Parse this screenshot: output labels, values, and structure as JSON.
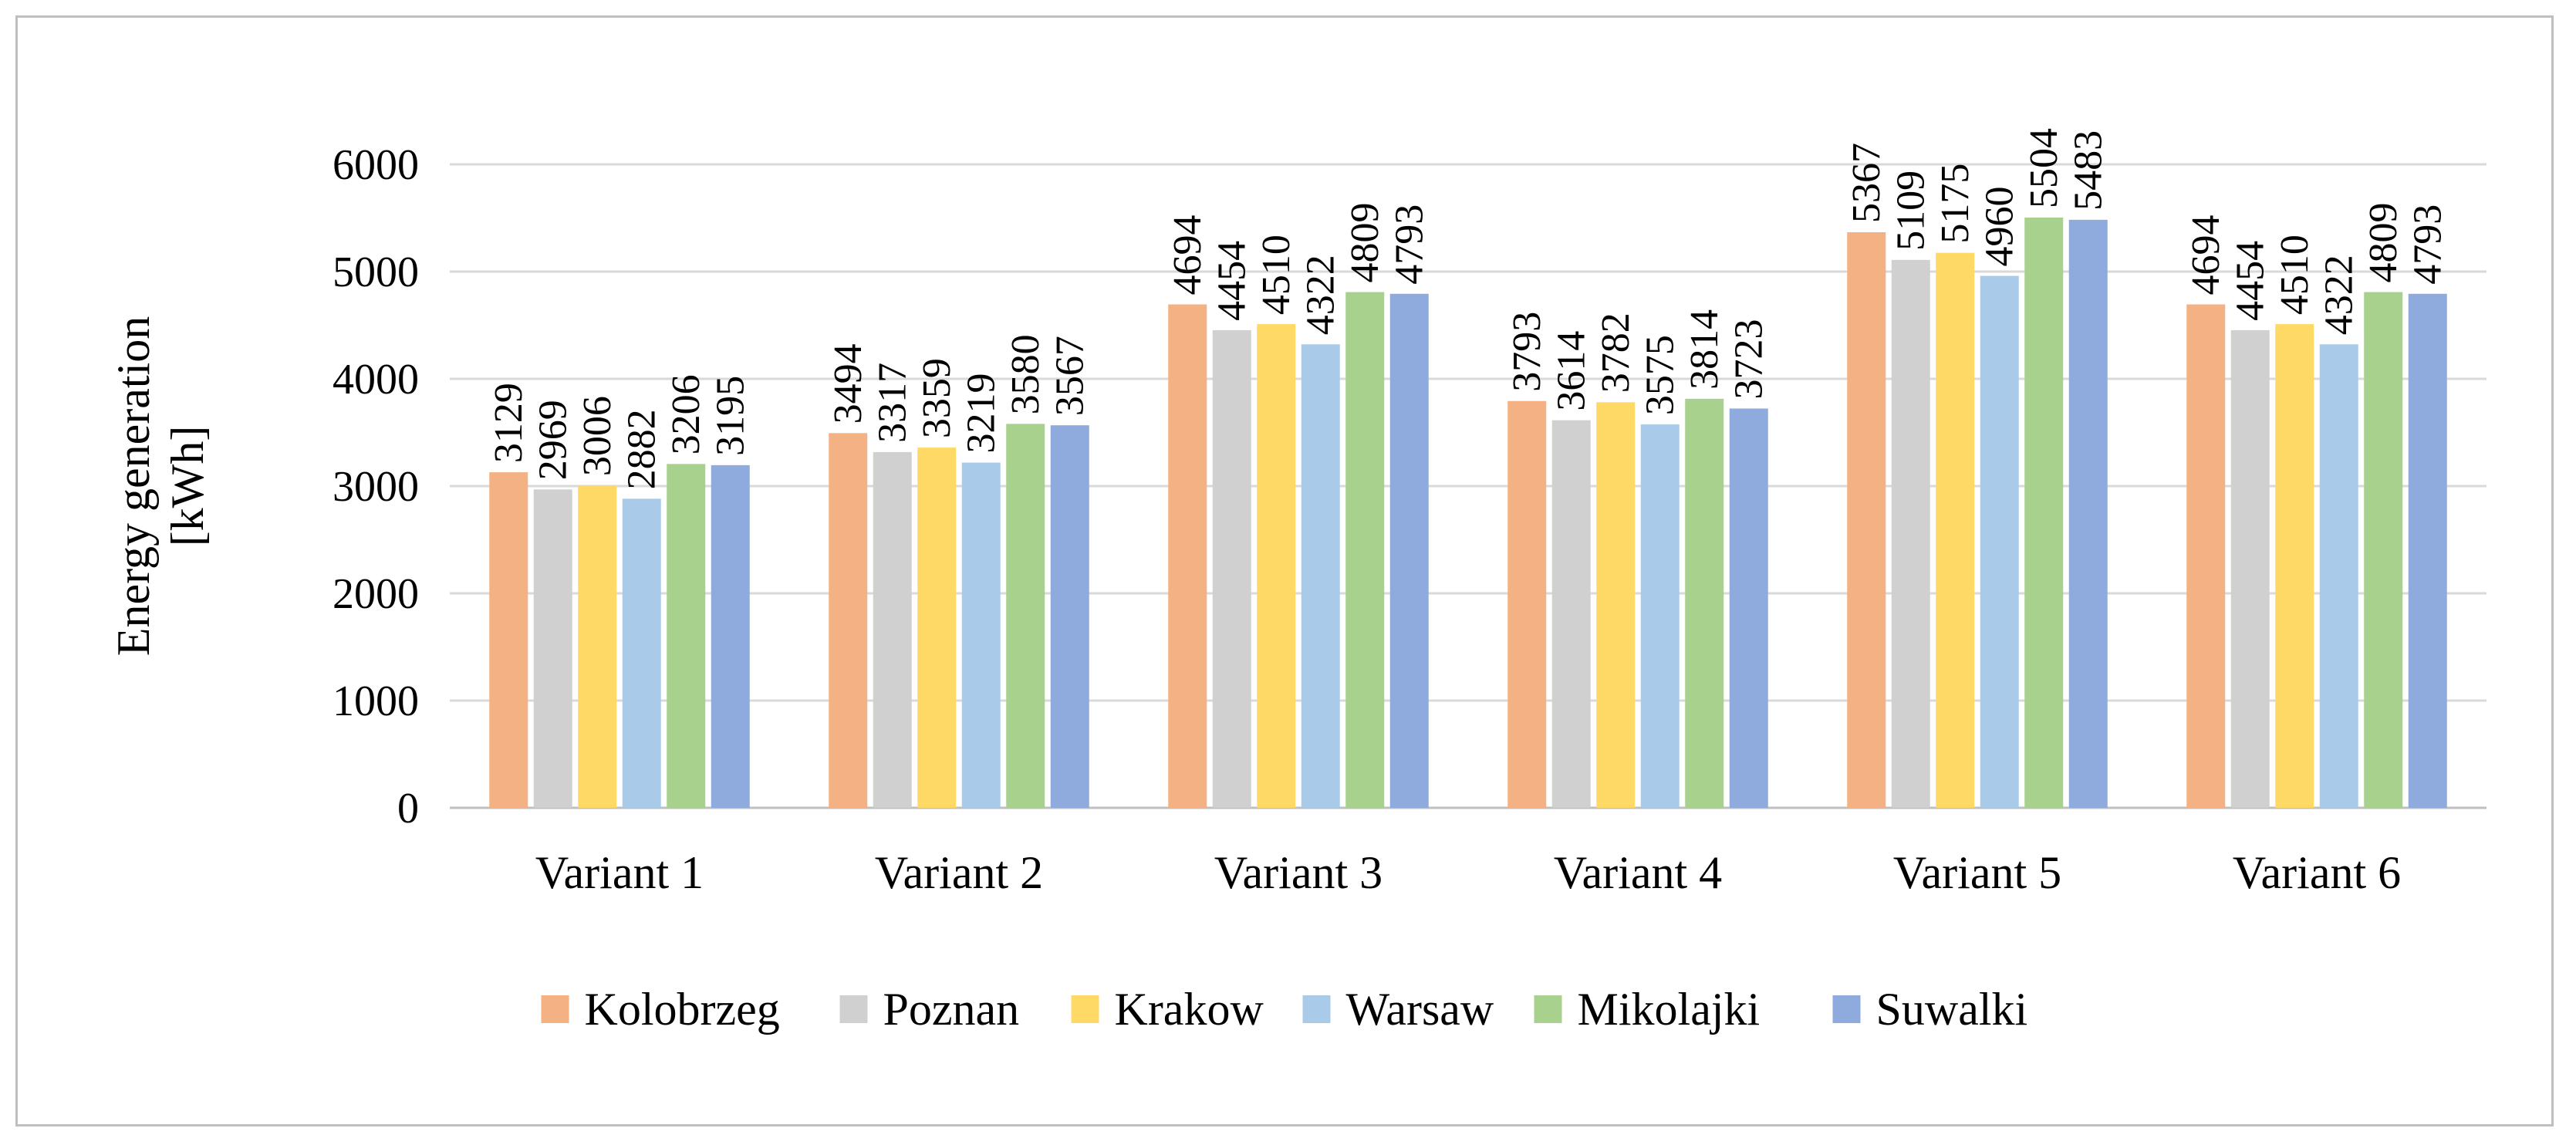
{
  "chart_data": {
    "type": "bar",
    "title": "",
    "xlabel": "",
    "ylabel_lines": [
      "Energy generation",
      "[kWh]"
    ],
    "ylim": [
      0,
      6000
    ],
    "yticks": [
      0,
      1000,
      2000,
      3000,
      4000,
      5000,
      6000
    ],
    "grid": true,
    "legend_position": "bottom",
    "categories": [
      "Variant 1",
      "Variant 2",
      "Variant 3",
      "Variant 4",
      "Variant 5",
      "Variant 6"
    ],
    "series": [
      {
        "name": "Kolobrzeg",
        "color": "#f4b183",
        "values": [
          3129,
          3494,
          4694,
          3793,
          5367,
          4694
        ]
      },
      {
        "name": "Poznan",
        "color": "#d0d0d0",
        "values": [
          2969,
          3317,
          4454,
          3614,
          5109,
          4454
        ]
      },
      {
        "name": "Krakow",
        "color": "#ffd966",
        "values": [
          3006,
          3359,
          4510,
          3782,
          5175,
          4510
        ]
      },
      {
        "name": "Warsaw",
        "color": "#a9cbe9",
        "values": [
          2882,
          3219,
          4322,
          3575,
          4960,
          4322
        ]
      },
      {
        "name": "Mikolajki",
        "color": "#a9d18e",
        "values": [
          3206,
          3580,
          4809,
          3814,
          5504,
          4809
        ]
      },
      {
        "name": "Suwalki",
        "color": "#8faadc",
        "values": [
          3195,
          3567,
          4793,
          3723,
          5483,
          4793
        ]
      }
    ]
  }
}
